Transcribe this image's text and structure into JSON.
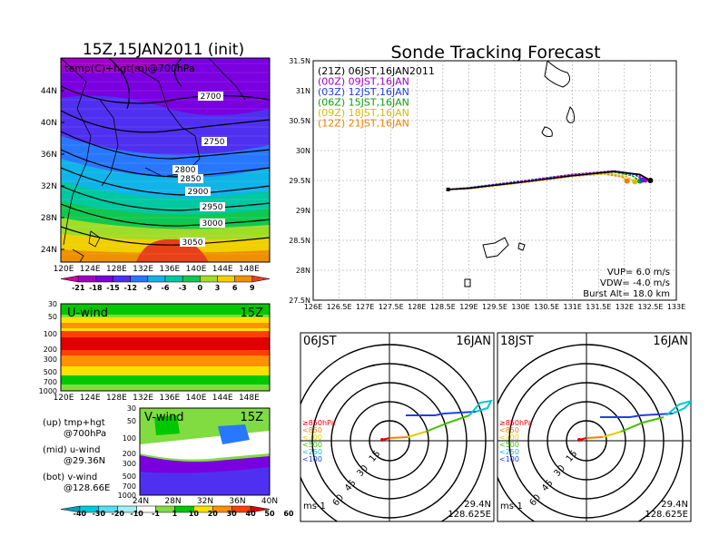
{
  "left": {
    "title": "15Z,15JAN2011 (init)",
    "map_label": "temp(C)+hgt(m)@700hPa",
    "lat_ticks": [
      "44N",
      "40N",
      "36N",
      "32N",
      "28N",
      "24N"
    ],
    "lon_ticks": [
      "120E",
      "124E",
      "128E",
      "132E",
      "136E",
      "140E",
      "144E",
      "148E"
    ],
    "contour_labels": [
      "2700",
      "2750",
      "2800",
      "2850",
      "2900",
      "2950",
      "3000",
      "3050"
    ],
    "temp_scale": [
      "-21",
      "-18",
      "-15",
      "-12",
      "-9",
      "-6",
      "-3",
      "0",
      "3",
      "6",
      "9"
    ],
    "temp_colors": [
      "#d000a0",
      "#a000c8",
      "#7a00e0",
      "#5030f0",
      "#2878ff",
      "#10b4e8",
      "#00c8a0",
      "#10c850",
      "#a0dc28",
      "#f0d000",
      "#f09000",
      "#e84018"
    ],
    "u_panel": {
      "label": "U-wind",
      "time": "15Z",
      "p_ticks": [
        "30",
        "50",
        "100",
        "200",
        "300",
        "500",
        "700",
        "1000"
      ]
    },
    "v_panel": {
      "label": "V-wind",
      "time": "15Z",
      "p_ticks": [
        "30",
        "50",
        "100",
        "200",
        "300",
        "500",
        "700",
        "1000"
      ],
      "lat_ticks": [
        "24N",
        "28N",
        "32N",
        "36N",
        "40N"
      ]
    },
    "notes": [
      {
        "a": "(up) tmp+hgt",
        "b": "@700hPa"
      },
      {
        "a": "(mid) u-wind",
        "b": "@29.36N"
      },
      {
        "a": "(bot) v-wind",
        "b": "@128.66E"
      }
    ],
    "wind_scale": [
      "-40",
      "-30",
      "-20",
      "-10",
      "-1",
      "1",
      "10",
      "20",
      "30",
      "40",
      "50",
      "60"
    ],
    "wind_colors": [
      "#00a0c0",
      "#00c8e0",
      "#50e0f0",
      "#a0f0f8",
      "#ffffff",
      "#80dc40",
      "#00c800",
      "#ffe000",
      "#ff9000",
      "#ff4000",
      "#e00000"
    ]
  },
  "tracking": {
    "title": "Sonde Tracking Forecast",
    "lat_ticks": [
      "31.5N",
      "31N",
      "30.5N",
      "30N",
      "29.5N",
      "29N",
      "28.5N",
      "28N",
      "27.5N"
    ],
    "lon_ticks": [
      "126E",
      "126.5E",
      "127E",
      "127.5E",
      "128E",
      "128.5E",
      "129E",
      "129.5E",
      "130E",
      "130.5E",
      "131E",
      "131.5E",
      "132E",
      "132.5E",
      "133E"
    ],
    "legend": [
      {
        "text": "(21Z) 06JST,16JAN2011",
        "color": "#000000"
      },
      {
        "text": "(00Z) 09JST,16JAN",
        "color": "#a000c0"
      },
      {
        "text": "(03Z) 12JST,16JAN",
        "color": "#2040e0"
      },
      {
        "text": "(06Z) 15JST,16JAN",
        "color": "#10a010"
      },
      {
        "text": "(09Z) 18JST,16JAN",
        "color": "#d0c000"
      },
      {
        "text": "(12Z) 21JST,16JAN",
        "color": "#f08000"
      }
    ],
    "params": {
      "vup": "VUP= 6.0 m/s",
      "vdw": "VDW= -4.0 m/s",
      "burst": "Burst Alt= 18.0 km"
    }
  },
  "hodographs": [
    {
      "time_label": "06JST",
      "date_label": "16JAN",
      "loc_lat": "29.4N",
      "loc_lon": "128.625E",
      "units": "ms-1"
    },
    {
      "time_label": "18JST",
      "date_label": "16JAN",
      "loc_lat": "29.4N",
      "loc_lon": "128.625E",
      "units": "ms-1"
    }
  ],
  "hodo_common": {
    "ring_labels": [
      "15",
      "30",
      "45",
      "60"
    ],
    "levels": [
      {
        "text": "≥850hPa",
        "color": "#e00000"
      },
      {
        "text": "<850",
        "color": "#f08000"
      },
      {
        "text": "<700",
        "color": "#e0d000"
      },
      {
        "text": "<500",
        "color": "#40c000"
      },
      {
        "text": "<250",
        "color": "#00c8d0"
      },
      {
        "text": "<100",
        "color": "#2040e0"
      }
    ]
  },
  "chart_data": {
    "type": "line",
    "title": "Sonde Tracking Forecast",
    "xlim": [
      126,
      133
    ],
    "ylim": [
      27.5,
      31.5
    ],
    "launch": [
      128.6,
      29.35
    ],
    "series": [
      {
        "name": "(21Z) 06JST,16JAN2011",
        "points": [
          [
            128.6,
            29.35
          ],
          [
            129.0,
            29.37
          ],
          [
            130.0,
            29.47
          ],
          [
            131.0,
            29.58
          ],
          [
            131.8,
            29.65
          ],
          [
            132.3,
            29.6
          ],
          [
            132.5,
            29.5
          ]
        ]
      },
      {
        "name": "(00Z) 09JST,16JAN",
        "points": [
          [
            128.6,
            29.35
          ],
          [
            129.0,
            29.37
          ],
          [
            130.0,
            29.48
          ],
          [
            131.0,
            29.6
          ],
          [
            131.8,
            29.66
          ],
          [
            132.25,
            29.6
          ],
          [
            132.4,
            29.51
          ]
        ]
      },
      {
        "name": "(03Z) 12JST,16JAN",
        "points": [
          [
            128.6,
            29.35
          ],
          [
            129.0,
            29.38
          ],
          [
            130.0,
            29.49
          ],
          [
            131.0,
            29.6
          ],
          [
            131.8,
            29.65
          ],
          [
            132.2,
            29.6
          ],
          [
            132.35,
            29.51
          ]
        ]
      },
      {
        "name": "(06Z) 15JST,16JAN",
        "points": [
          [
            128.6,
            29.35
          ],
          [
            129.0,
            29.37
          ],
          [
            130.0,
            29.48
          ],
          [
            131.0,
            29.59
          ],
          [
            131.8,
            29.64
          ],
          [
            132.15,
            29.58
          ],
          [
            132.3,
            29.49
          ]
        ]
      },
      {
        "name": "(09Z) 18JST,16JAN",
        "points": [
          [
            128.6,
            29.35
          ],
          [
            129.0,
            29.36
          ],
          [
            130.0,
            29.47
          ],
          [
            131.0,
            29.58
          ],
          [
            131.7,
            29.62
          ],
          [
            132.05,
            29.56
          ],
          [
            132.2,
            29.48
          ]
        ]
      },
      {
        "name": "(12Z) 21JST,16JAN",
        "points": [
          [
            128.6,
            29.35
          ],
          [
            129.0,
            29.36
          ],
          [
            130.0,
            29.46
          ],
          [
            131.0,
            29.57
          ],
          [
            131.6,
            29.61
          ],
          [
            131.95,
            29.56
          ],
          [
            132.05,
            29.49
          ]
        ]
      }
    ]
  }
}
